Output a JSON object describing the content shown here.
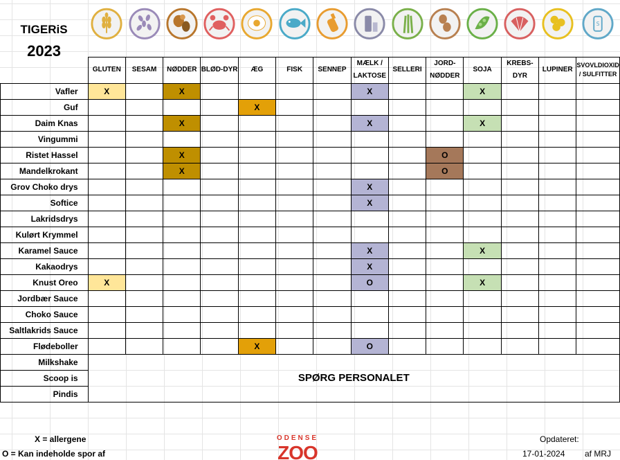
{
  "title": {
    "line1": "TIGERiS",
    "line2": "2023"
  },
  "allergens": [
    {
      "label": "GLUTEN",
      "icon": "wheat-icon",
      "ring": "#e0b040"
    },
    {
      "label": "SESAM",
      "icon": "sesame-seeds-icon",
      "ring": "#9a8ab8"
    },
    {
      "label": "NØDDER",
      "icon": "nuts-icon",
      "ring": "#b8762c"
    },
    {
      "label": "BLØD-DYR",
      "icon": "crab-icon",
      "ring": "#e06060"
    },
    {
      "label": "ÆG",
      "icon": "egg-icon",
      "ring": "#e8a830"
    },
    {
      "label": "FISK",
      "icon": "fish-icon",
      "ring": "#4aaac8"
    },
    {
      "label": "SENNEP",
      "icon": "mustard-icon",
      "ring": "#e89c30"
    },
    {
      "label": "MÆLK / LAKTOSE",
      "icon": "milk-icon",
      "ring": "#8a8aa8"
    },
    {
      "label": "SELLERI",
      "icon": "celery-icon",
      "ring": "#7ab04a"
    },
    {
      "label": "JORD-NØDDER",
      "icon": "peanut-icon",
      "ring": "#b88050"
    },
    {
      "label": "SOJA",
      "icon": "soy-icon",
      "ring": "#6ab048"
    },
    {
      "label": "KREBS-DYR",
      "icon": "shell-icon",
      "ring": "#d86060"
    },
    {
      "label": "LUPINER",
      "icon": "lupin-icon",
      "ring": "#e8c020"
    },
    {
      "label": "SVOVLDIOXID / SULFITTER",
      "icon": "sulfite-icon",
      "ring": "#60a8c8"
    }
  ],
  "colors": {
    "gluten": "#ffe699",
    "nuts": "#bf8f00",
    "egg": "#e3a008",
    "milk": "#b4b4d4",
    "peanut": "#a5785a",
    "soy": "#c6e0b4"
  },
  "rows": [
    {
      "name": "Vafler",
      "marks": [
        {
          "col": 0,
          "v": "X",
          "color": "gluten"
        },
        {
          "col": 2,
          "v": "X",
          "color": "nuts"
        },
        {
          "col": 7,
          "v": "X",
          "color": "milk"
        },
        {
          "col": 10,
          "v": "X",
          "color": "soy"
        }
      ]
    },
    {
      "name": "Guf",
      "marks": [
        {
          "col": 4,
          "v": "X",
          "color": "egg"
        }
      ]
    },
    {
      "name": "Daim Knas",
      "marks": [
        {
          "col": 2,
          "v": "X",
          "color": "nuts"
        },
        {
          "col": 7,
          "v": "X",
          "color": "milk"
        },
        {
          "col": 10,
          "v": "X",
          "color": "soy"
        }
      ]
    },
    {
      "name": "Vingummi",
      "marks": []
    },
    {
      "name": "Ristet Hassel",
      "marks": [
        {
          "col": 2,
          "v": "X",
          "color": "nuts"
        },
        {
          "col": 9,
          "v": "O",
          "color": "peanut"
        }
      ]
    },
    {
      "name": "Mandelkrokant",
      "marks": [
        {
          "col": 2,
          "v": "X",
          "color": "nuts"
        },
        {
          "col": 9,
          "v": "O",
          "color": "peanut"
        }
      ]
    },
    {
      "name": "Grov Choko drys",
      "marks": [
        {
          "col": 7,
          "v": "X",
          "color": "milk"
        }
      ]
    },
    {
      "name": "Softice",
      "marks": [
        {
          "col": 7,
          "v": "X",
          "color": "milk"
        }
      ]
    },
    {
      "name": "Lakridsdrys",
      "marks": []
    },
    {
      "name": "Kulørt Krymmel",
      "marks": []
    },
    {
      "name": "Karamel Sauce",
      "marks": [
        {
          "col": 7,
          "v": "X",
          "color": "milk"
        },
        {
          "col": 10,
          "v": "X",
          "color": "soy"
        }
      ]
    },
    {
      "name": "Kakaodrys",
      "marks": [
        {
          "col": 7,
          "v": "X",
          "color": "milk"
        }
      ]
    },
    {
      "name": "Knust Oreo",
      "marks": [
        {
          "col": 0,
          "v": "X",
          "color": "gluten"
        },
        {
          "col": 7,
          "v": "O",
          "color": "milk"
        },
        {
          "col": 10,
          "v": "X",
          "color": "soy"
        }
      ]
    },
    {
      "name": "Jordbær Sauce",
      "marks": []
    },
    {
      "name": "Choko Sauce",
      "marks": []
    },
    {
      "name": "Saltlakrids Sauce",
      "marks": []
    },
    {
      "name": "Flødeboller",
      "marks": [
        {
          "col": 4,
          "v": "X",
          "color": "egg"
        },
        {
          "col": 7,
          "v": "O",
          "color": "milk"
        }
      ]
    }
  ],
  "ask_rows": [
    "Milkshake",
    "Scoop is",
    "Pindis"
  ],
  "ask_staff": "SPØRG PERSONALET",
  "legend": {
    "x": "X = allergene",
    "o": "O = Kan indeholde spor af"
  },
  "logo": {
    "top": "ODENSE",
    "bottom": "ZOO",
    "color": "#d8352a"
  },
  "updated": {
    "label": "Opdateret:",
    "date": "17-01-2024",
    "by": "af MRJ"
  }
}
